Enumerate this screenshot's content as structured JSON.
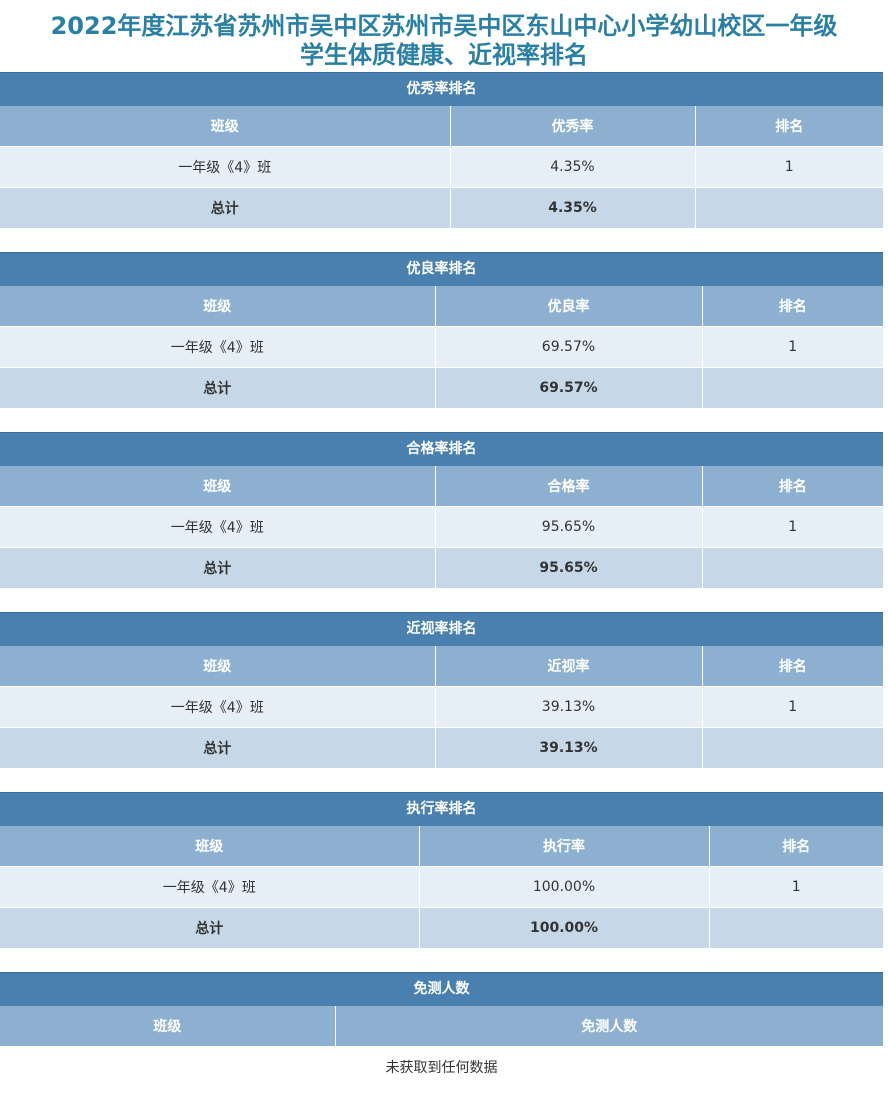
{
  "title_line1": "2022年度江苏省苏州市吴中区苏州市吴中区东山中心小学幼山校区一年级",
  "title_line2": "学生体质健康、近视率排名",
  "sections": [
    {
      "header": "优秀率排名",
      "columns": [
        "班级",
        "优秀率",
        "排名"
      ],
      "row": {
        "class": "一年级《4》班",
        "rate": "4.35%",
        "rank": "1"
      },
      "total": {
        "label": "总计",
        "rate": "4.35%",
        "rank": ""
      }
    },
    {
      "header": "优良率排名",
      "columns": [
        "班级",
        "优良率",
        "排名"
      ],
      "row": {
        "class": "一年级《4》班",
        "rate": "69.57%",
        "rank": "1"
      },
      "total": {
        "label": "总计",
        "rate": "69.57%",
        "rank": ""
      }
    },
    {
      "header": "合格率排名",
      "columns": [
        "班级",
        "合格率",
        "排名"
      ],
      "row": {
        "class": "一年级《4》班",
        "rate": "95.65%",
        "rank": "1"
      },
      "total": {
        "label": "总计",
        "rate": "95.65%",
        "rank": ""
      }
    },
    {
      "header": "近视率排名",
      "columns": [
        "班级",
        "近视率",
        "排名"
      ],
      "row": {
        "class": "一年级《4》班",
        "rate": "39.13%",
        "rank": "1"
      },
      "total": {
        "label": "总计",
        "rate": "39.13%",
        "rank": ""
      }
    },
    {
      "header": "执行率排名",
      "columns": [
        "班级",
        "执行率",
        "排名"
      ],
      "row": {
        "class": "一年级《4》班",
        "rate": "100.00%",
        "rank": "1"
      },
      "total": {
        "label": "总计",
        "rate": "100.00%",
        "rank": ""
      }
    }
  ],
  "exempt": {
    "header": "免测人数",
    "columns": [
      "班级",
      "免测人数"
    ],
    "empty_message": "未获取到任何数据"
  }
}
